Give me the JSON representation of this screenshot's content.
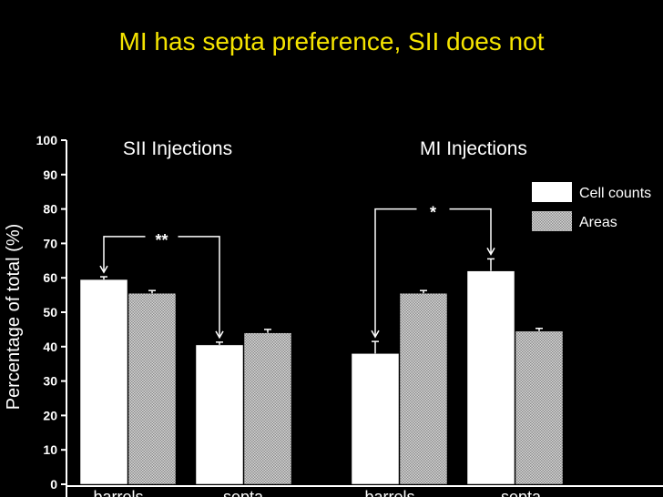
{
  "slide": {
    "title": "MI has septa preference, SII does not"
  },
  "chart_data": {
    "type": "bar",
    "ylabel": "Percentage of total (%)",
    "ylim": [
      0,
      100
    ],
    "yticks": [
      0,
      10,
      20,
      30,
      40,
      50,
      60,
      70,
      80,
      90,
      100
    ],
    "legend_position": "top-right",
    "colors": {
      "background": "#000000",
      "cell_counts": "#ffffff",
      "areas": "#b0b0b0",
      "title": "#f5e400"
    },
    "series_names": [
      "Cell counts",
      "Areas"
    ],
    "panels": [
      {
        "title": "SII Injections",
        "categories": [
          "barrels",
          "septa"
        ],
        "series": [
          {
            "name": "Cell counts",
            "values": [
              59.5,
              40.5
            ],
            "errors": [
              0.8,
              0.8
            ]
          },
          {
            "name": "Areas",
            "values": [
              55.5,
              44.0
            ],
            "errors": [
              0.8,
              1.0
            ]
          }
        ],
        "significance": "**"
      },
      {
        "title": "MI Injections",
        "categories": [
          "barrels",
          "septa"
        ],
        "series": [
          {
            "name": "Cell counts",
            "values": [
              38.0,
              62.0
            ],
            "errors": [
              3.5,
              3.5
            ]
          },
          {
            "name": "Areas",
            "values": [
              55.5,
              44.5
            ],
            "errors": [
              0.8,
              0.8
            ]
          }
        ],
        "significance": "*"
      }
    ]
  }
}
